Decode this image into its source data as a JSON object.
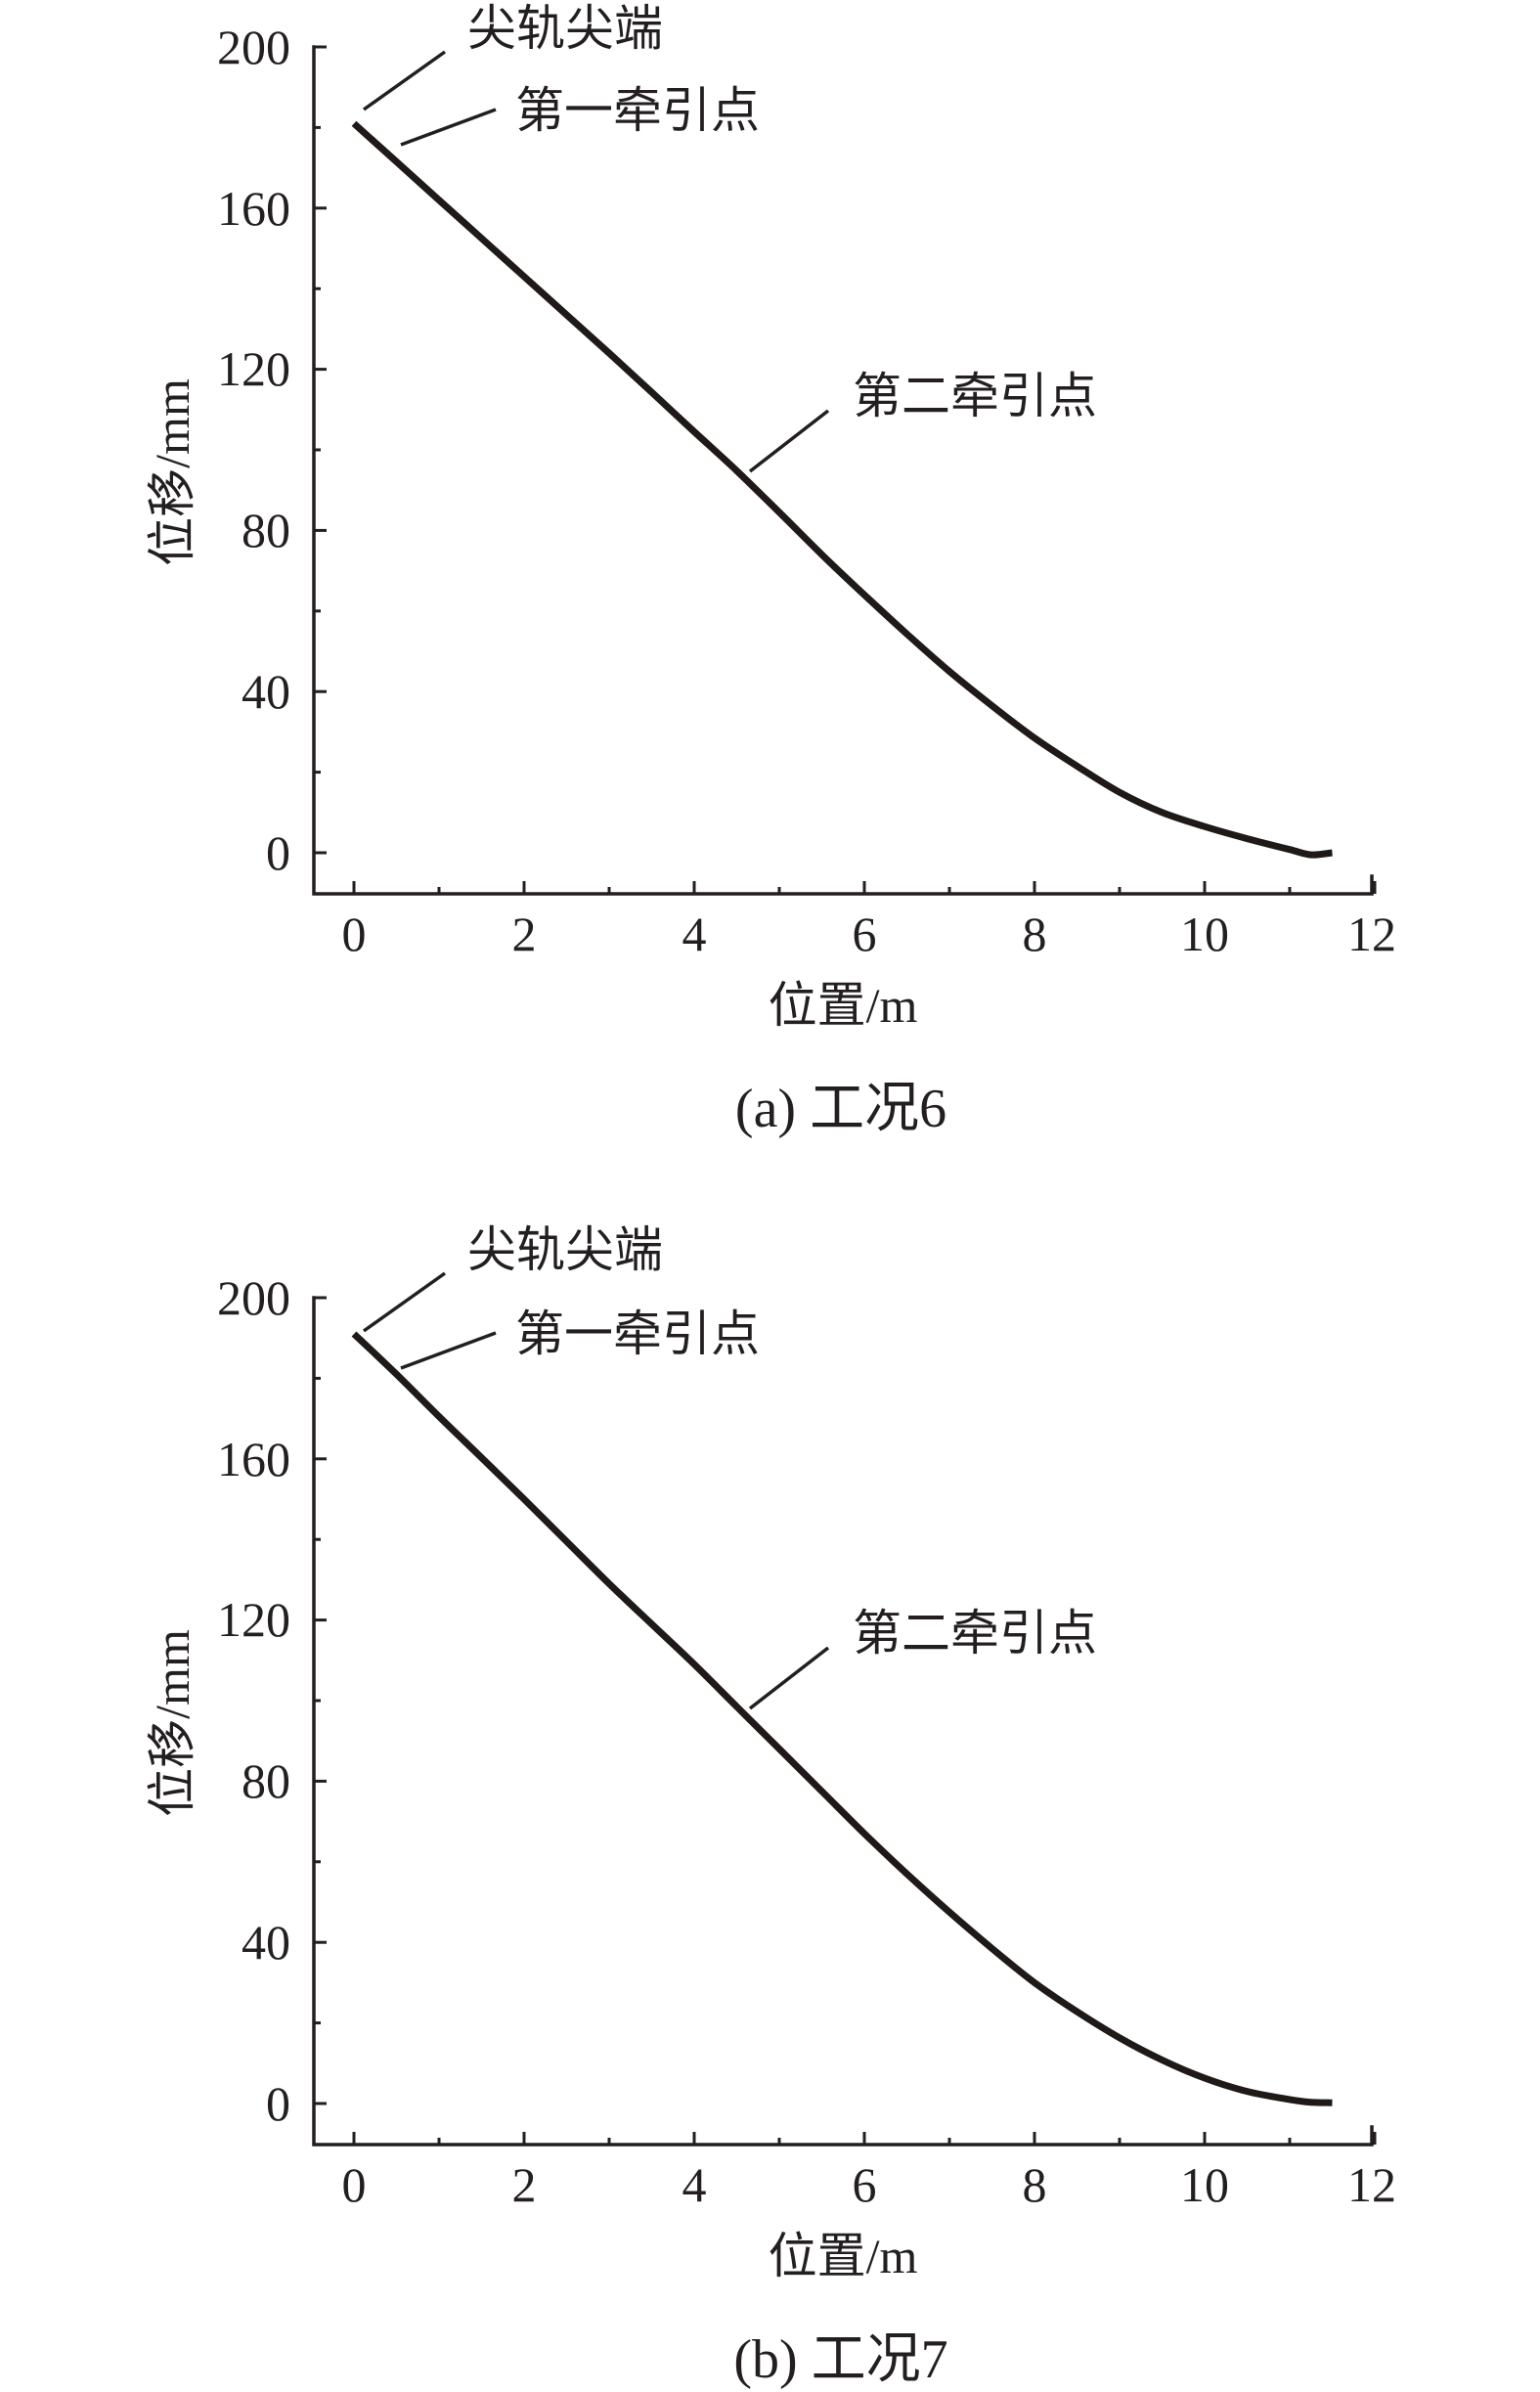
{
  "chart_data": [
    {
      "type": "line",
      "panel": "a",
      "caption": "(a) 工况6",
      "xlabel": "位置/m",
      "ylabel": "位移/mm",
      "xlim": [
        0,
        12
      ],
      "ylim": [
        0,
        200
      ],
      "xticks": [
        0,
        2,
        4,
        6,
        8,
        10,
        12
      ],
      "xtick_labels": [
        "0",
        "2",
        "4",
        "6",
        "8",
        "10",
        "12"
      ],
      "yticks": [
        0,
        40,
        80,
        120,
        160,
        200
      ],
      "ytick_labels": [
        "0",
        "40",
        "80",
        "120",
        "160",
        "200"
      ],
      "grid": false,
      "legend": null,
      "series": [
        {
          "name": "位移",
          "color": "#1f1a17",
          "x": [
            0,
            0.5,
            1,
            1.5,
            2,
            2.5,
            3,
            3.5,
            4,
            4.5,
            5,
            5.5,
            6,
            6.5,
            7,
            7.5,
            8,
            8.5,
            9,
            9.5,
            10,
            10.5,
            11,
            11.25,
            11.5
          ],
          "y": [
            181,
            171.5,
            162,
            152.5,
            143,
            133.5,
            124,
            114.3,
            104.5,
            94.8,
            84.5,
            74,
            64,
            54.3,
            45,
            36.5,
            28.5,
            21.5,
            15,
            10,
            6.5,
            3.5,
            0.8,
            -0.5,
            0
          ]
        }
      ],
      "annotations": [
        {
          "text": "尖轨尖端",
          "point": [
            0.1,
            186
          ]
        },
        {
          "text": "第一牵引点",
          "point": [
            0.55,
            175
          ]
        },
        {
          "text": "第二牵引点",
          "point": [
            4.66,
            95
          ]
        }
      ]
    },
    {
      "type": "line",
      "panel": "b",
      "caption": "(b) 工况7",
      "xlabel": "位置/m",
      "ylabel": "位移/mm",
      "xlim": [
        0,
        12
      ],
      "ylim": [
        0,
        200
      ],
      "xticks": [
        0,
        2,
        4,
        6,
        8,
        10,
        12
      ],
      "xtick_labels": [
        "0",
        "2",
        "4",
        "6",
        "8",
        "10",
        "12"
      ],
      "yticks": [
        0,
        40,
        80,
        120,
        160,
        200
      ],
      "ytick_labels": [
        "0",
        "40",
        "80",
        "120",
        "160",
        "200"
      ],
      "grid": false,
      "legend": null,
      "series": [
        {
          "name": "位移",
          "color": "#1f1a17",
          "x": [
            0,
            0.5,
            1,
            1.5,
            2,
            2.5,
            3,
            3.5,
            4,
            4.5,
            5,
            5.5,
            6,
            6.5,
            7,
            7.5,
            8,
            8.5,
            9,
            9.5,
            10,
            10.5,
            11,
            11.25,
            11.5
          ],
          "y": [
            191,
            181,
            170.5,
            160.3,
            150,
            139.5,
            129,
            119,
            109,
            98.5,
            88,
            77.5,
            67,
            57,
            47.5,
            38.5,
            30,
            22.8,
            16.3,
            10.8,
            6.3,
            3,
            1,
            0.3,
            0.2
          ]
        }
      ],
      "annotations": [
        {
          "text": "尖轨尖端",
          "point": [
            0.1,
            196
          ]
        },
        {
          "text": "第一牵引点",
          "point": [
            0.55,
            185
          ]
        },
        {
          "text": "第二牵引点",
          "point": [
            4.66,
            99
          ]
        }
      ]
    }
  ],
  "panels": [
    {
      "caption": "(a) 工况6",
      "xlabel": "位置/m",
      "ylabel": "位移/mm",
      "ytick_labels": [
        "0",
        "40",
        "80",
        "120",
        "160",
        "200"
      ],
      "xtick_labels": [
        "0",
        "2",
        "4",
        "6",
        "8",
        "10",
        "12"
      ],
      "annotations": [
        "尖轨尖端",
        "第一牵引点",
        "第二牵引点"
      ]
    },
    {
      "caption": "(b) 工况7",
      "xlabel": "位置/m",
      "ylabel": "位移/mm",
      "ytick_labels": [
        "0",
        "40",
        "80",
        "120",
        "160",
        "200"
      ],
      "xtick_labels": [
        "0",
        "2",
        "4",
        "6",
        "8",
        "10",
        "12"
      ],
      "annotations": [
        "尖轨尖端",
        "第一牵引点",
        "第二牵引点"
      ]
    }
  ],
  "colors": {
    "ink": "#231f20",
    "curve": "#1f1a17",
    "background": "#ffffff"
  }
}
